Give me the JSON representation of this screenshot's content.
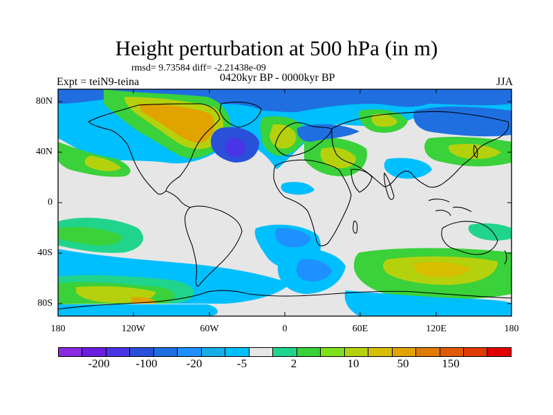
{
  "title": "Height perturbation at 500 hPa (in m)",
  "stats": "rmsd= 9.73584 diff= -2.21438e-09",
  "left_label": "Expt = teiN9-teina",
  "center_label": "0420kyr BP - 0000kyr BP",
  "right_label": "JJA",
  "lat_ticks": [
    "80N",
    "40N",
    "0",
    "40S",
    "80S"
  ],
  "lon_ticks": [
    "180",
    "120W",
    "60W",
    "0",
    "60E",
    "120E",
    "180"
  ],
  "colorbar": {
    "colors": [
      "#8a2be2",
      "#6a1fe0",
      "#4a35e6",
      "#2a4fd9",
      "#1f6fe0",
      "#1e90ff",
      "#17aee6",
      "#00bfff",
      "#e6e6e6",
      "#21d48c",
      "#3ad13a",
      "#7ee01b",
      "#b5d10d",
      "#d7be00",
      "#e1a300",
      "#e07a00",
      "#e05a00",
      "#e03a00",
      "#e00000"
    ],
    "labels": [
      "-200",
      "-100",
      "-20",
      "-5",
      "2",
      "10",
      "50",
      "150"
    ]
  }
}
